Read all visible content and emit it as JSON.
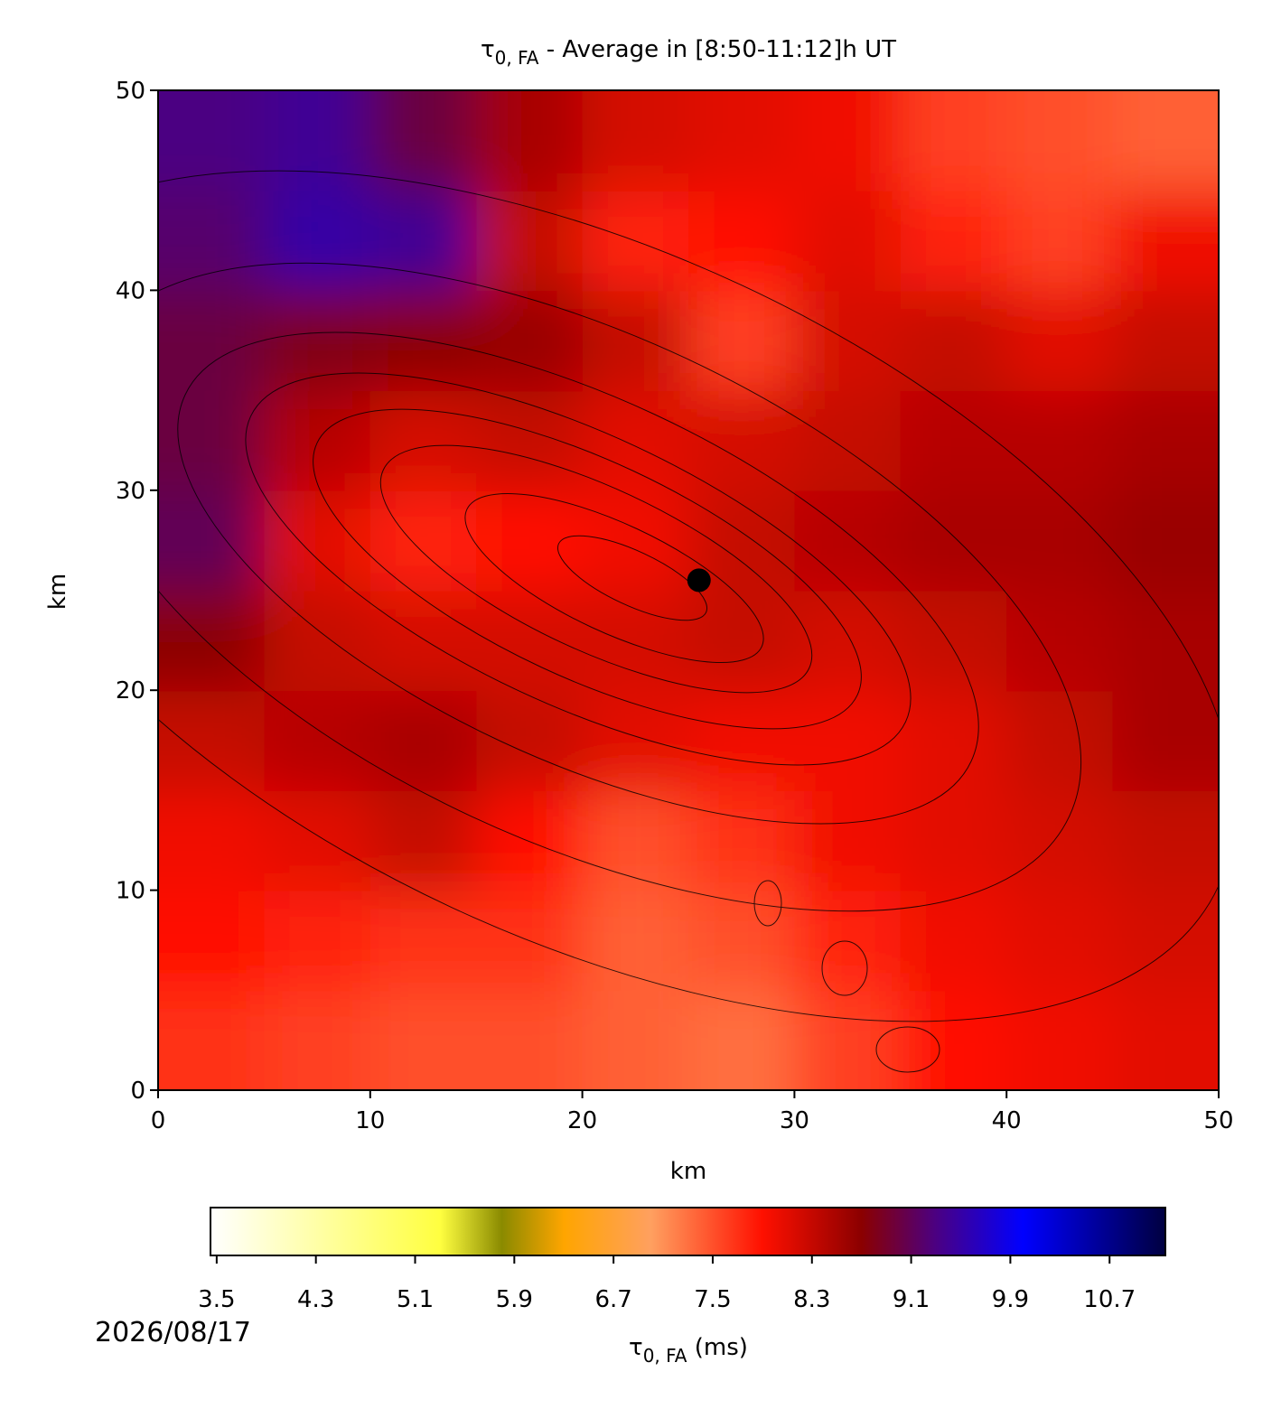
{
  "chart_data": {
    "type": "heatmap",
    "title_symbol": "τ",
    "title_subscript": "0, FA",
    "title_text": " - Average in [8:50-11:12]h UT",
    "x_label": "km",
    "y_label": "km",
    "xlim": [
      0,
      50
    ],
    "ylim": [
      0,
      50
    ],
    "xticks": [
      0,
      10,
      20,
      30,
      40,
      50
    ],
    "yticks": [
      0,
      10,
      20,
      30,
      40,
      50
    ],
    "z": [
      [
        7.7,
        7.6,
        7.5,
        7.5,
        7.4,
        7.3,
        7.6,
        7.9,
        8.0,
        8.1
      ],
      [
        7.9,
        7.8,
        7.7,
        7.7,
        7.4,
        7.5,
        7.8,
        8.0,
        8.1,
        8.2
      ],
      [
        8.0,
        8.1,
        8.3,
        7.9,
        7.5,
        7.7,
        8.0,
        8.1,
        8.2,
        8.3
      ],
      [
        8.3,
        8.4,
        8.5,
        8.3,
        8.1,
        8.0,
        8.0,
        8.1,
        8.3,
        8.5
      ],
      [
        8.7,
        8.3,
        8.2,
        8.2,
        8.2,
        8.3,
        8.2,
        8.3,
        8.4,
        8.5
      ],
      [
        9.1,
        8.1,
        7.8,
        7.9,
        8.0,
        8.3,
        8.4,
        8.5,
        8.5,
        8.6
      ],
      [
        9.0,
        8.4,
        8.2,
        8.3,
        8.1,
        8.2,
        8.3,
        8.4,
        8.4,
        8.5
      ],
      [
        9.0,
        8.8,
        8.7,
        8.6,
        8.3,
        7.6,
        8.2,
        8.3,
        8.1,
        8.3
      ],
      [
        9.2,
        9.5,
        9.4,
        8.3,
        7.8,
        7.9,
        8.1,
        7.8,
        7.6,
        8.0
      ],
      [
        9.3,
        9.4,
        9.0,
        8.5,
        8.2,
        8.1,
        8.0,
        7.6,
        7.5,
        7.4
      ]
    ],
    "point": {
      "x": 25.5,
      "y": 25.5,
      "color": "#000000"
    },
    "colorbar_lim": [
      3.45,
      11.15
    ],
    "colorbar_ticks": [
      3.5,
      4.3,
      5.1,
      5.9,
      6.7,
      7.5,
      8.3,
      9.1,
      9.9,
      10.7
    ],
    "colorbar_label_symbol": "τ",
    "colorbar_label_subscript": "0, FA",
    "colorbar_label_text": " (ms)",
    "colormap": [
      {
        "value": 3.45,
        "color": "#ffffff"
      },
      {
        "value": 5.3,
        "color": "#ffff40"
      },
      {
        "value": 5.8,
        "color": "#8a8a00"
      },
      {
        "value": 6.3,
        "color": "#ffa500"
      },
      {
        "value": 7.0,
        "color": "#ffa060"
      },
      {
        "value": 7.9,
        "color": "#ff1000"
      },
      {
        "value": 8.7,
        "color": "#8b0000"
      },
      {
        "value": 9.3,
        "color": "#4b0082"
      },
      {
        "value": 10.0,
        "color": "#0000ff"
      },
      {
        "value": 11.15,
        "color": "#000040"
      }
    ],
    "date": "2026/08/17"
  }
}
